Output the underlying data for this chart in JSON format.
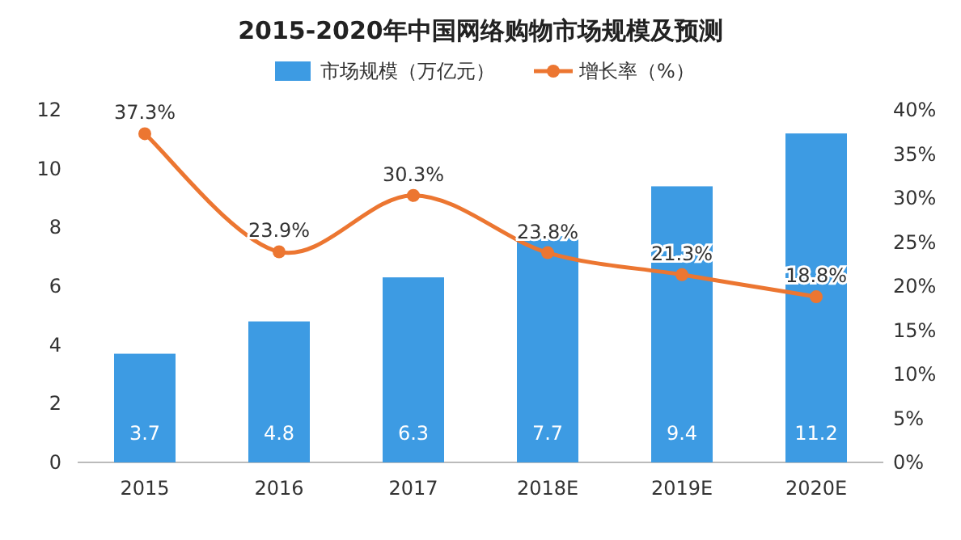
{
  "chart_data": {
    "type": "bar",
    "title": "2015-2020年中国网络购物市场规模及预测",
    "categories": [
      "2015",
      "2016",
      "2017",
      "2018E",
      "2019E",
      "2020E"
    ],
    "series": [
      {
        "name": "市场规模（万亿元）",
        "color": "#3d9be3",
        "values": [
          3.7,
          4.8,
          6.3,
          7.7,
          9.4,
          11.2
        ],
        "value_labels": [
          "3.7",
          "4.8",
          "6.3",
          "7.7",
          "9.4",
          "11.2"
        ]
      },
      {
        "name": "增长率（%）",
        "type": "line",
        "axis": "y2",
        "color": "#ec7631",
        "marker": "circle",
        "values": [
          37.3,
          23.9,
          30.3,
          23.8,
          21.3,
          18.8
        ],
        "value_labels": [
          "37.3%",
          "23.9%",
          "30.3%",
          "23.8%",
          "21.3%",
          "18.8%"
        ]
      }
    ],
    "ylim": [
      0,
      12
    ],
    "yticks": [
      0,
      2,
      4,
      6,
      8,
      10,
      12
    ],
    "y2lim": [
      0,
      40
    ],
    "y2ticks": [
      {
        "value": 0,
        "label": "0%"
      },
      {
        "value": 5,
        "label": "5%"
      },
      {
        "value": 10,
        "label": "10%"
      },
      {
        "value": 15,
        "label": "15%"
      },
      {
        "value": 20,
        "label": "20%"
      },
      {
        "value": 25,
        "label": "25%"
      },
      {
        "value": 30,
        "label": "30%"
      },
      {
        "value": 35,
        "label": "35%"
      },
      {
        "value": 40,
        "label": "40%"
      }
    ],
    "legend": "top",
    "grid": false
  }
}
